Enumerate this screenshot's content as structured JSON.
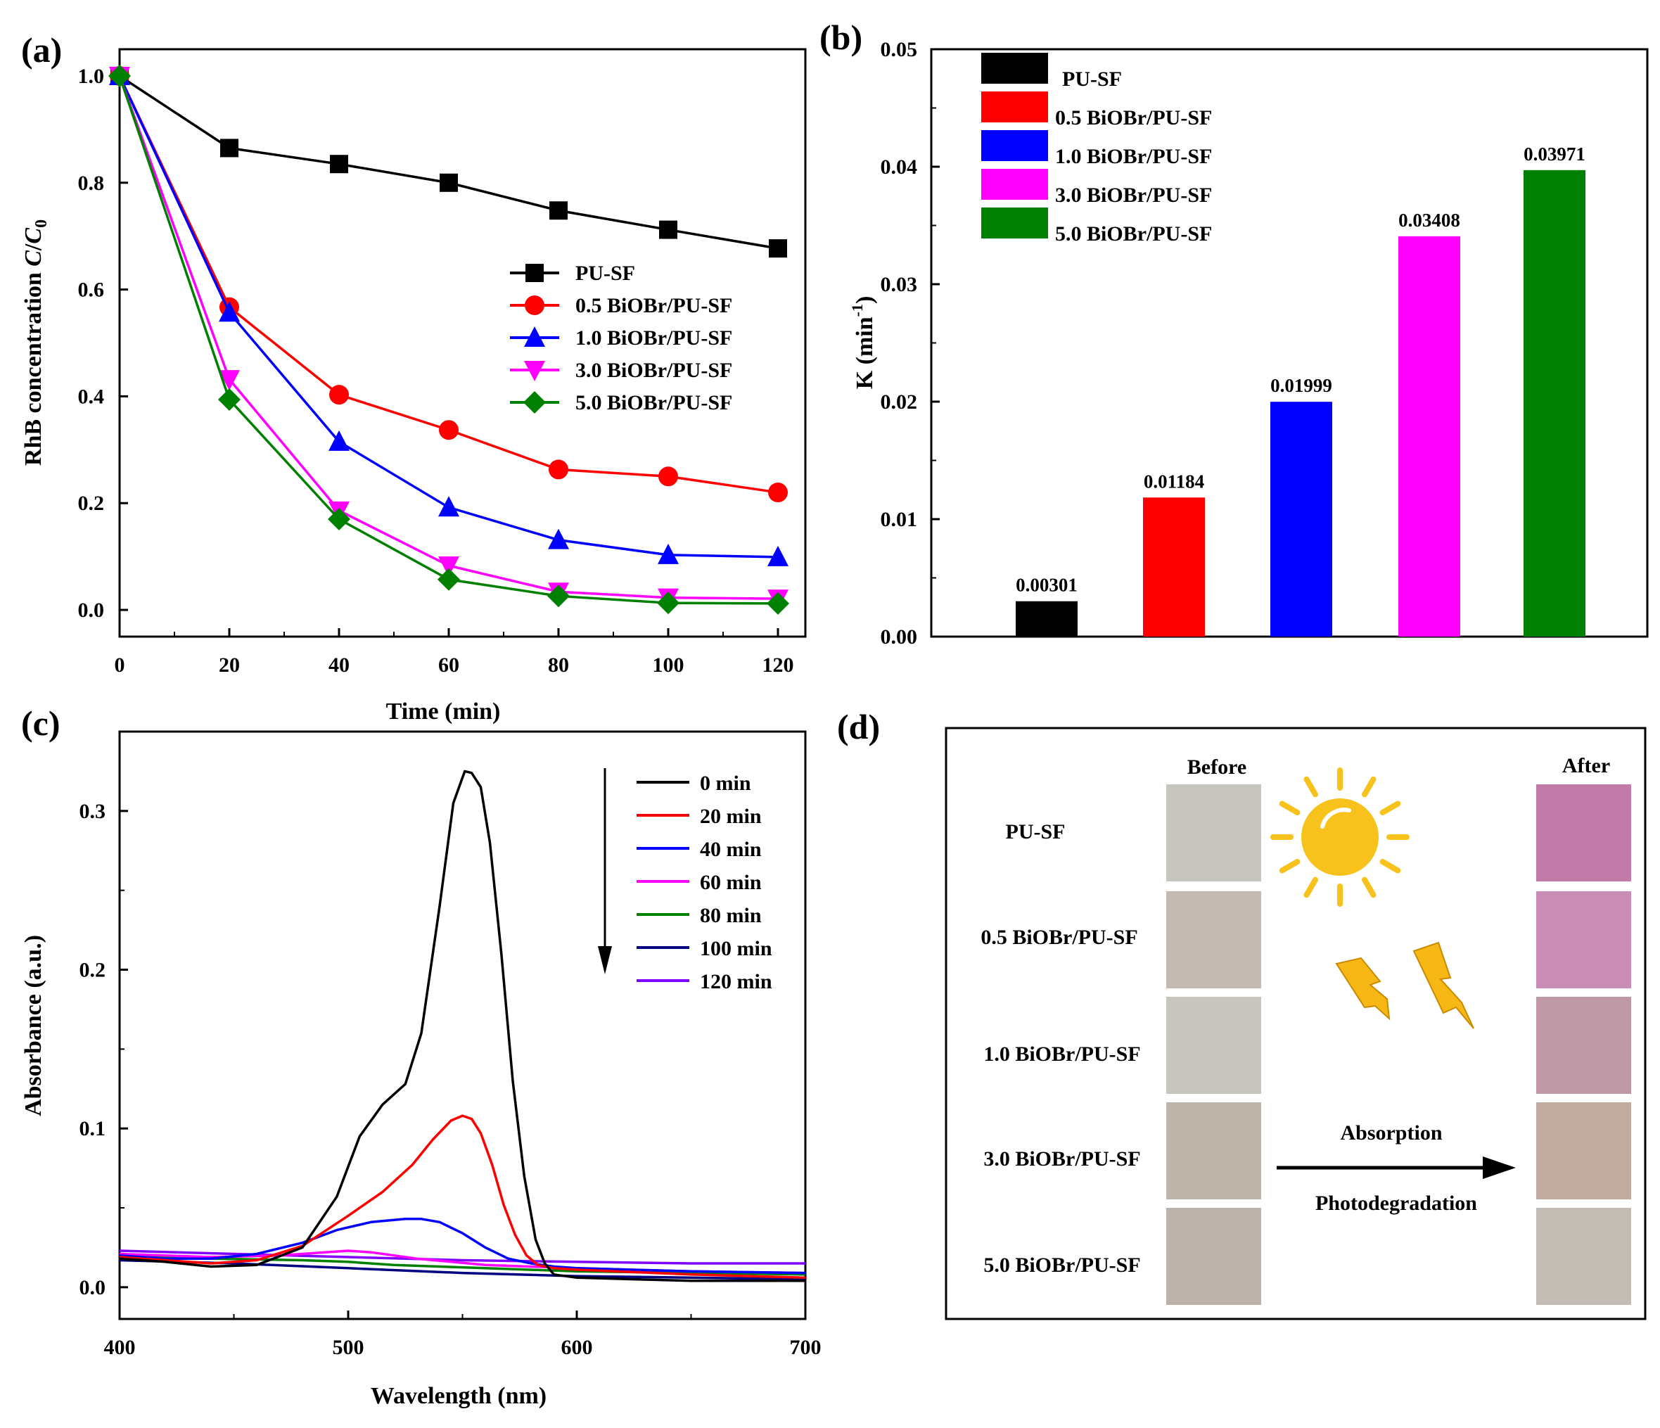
{
  "panel_labels": {
    "a": "(a)",
    "b": "(b)",
    "c": "(c)",
    "d": "(d)"
  },
  "chart_data": [
    {
      "id": "a",
      "type": "line",
      "xlabel": "Time (min)",
      "ylabel": "RhB concentration C/C0",
      "ylabel_parts": [
        "RhB concentration ",
        "C",
        "/",
        "C",
        "0"
      ],
      "xlim": [
        0,
        125
      ],
      "ylim": [
        -0.05,
        1.05
      ],
      "xticks": [
        0,
        20,
        40,
        60,
        80,
        100,
        120
      ],
      "yticks": [
        0.0,
        0.2,
        0.4,
        0.6,
        0.8,
        1.0
      ],
      "ytick_labels": [
        "0.0",
        "0.2",
        "0.4",
        "0.6",
        "0.8",
        "1.0"
      ],
      "x": [
        0,
        20,
        40,
        60,
        80,
        100,
        120
      ],
      "legend_position": "middle-right",
      "series": [
        {
          "name": "PU-SF",
          "color": "#000000",
          "marker": "square",
          "values": [
            1.0,
            0.865,
            0.835,
            0.8,
            0.748,
            0.712,
            0.677
          ]
        },
        {
          "name": "0.5 BiOBr/PU-SF",
          "color": "#ff0000",
          "marker": "circle",
          "values": [
            1.0,
            0.567,
            0.403,
            0.337,
            0.263,
            0.25,
            0.22
          ]
        },
        {
          "name": "1.0 BiOBr/PU-SF",
          "color": "#0000ff",
          "marker": "triangle-up",
          "values": [
            1.0,
            0.557,
            0.315,
            0.192,
            0.131,
            0.103,
            0.099
          ]
        },
        {
          "name": "3.0 BiOBr/PU-SF",
          "color": "#ff00ff",
          "marker": "triangle-down",
          "values": [
            1.0,
            0.432,
            0.186,
            0.083,
            0.034,
            0.023,
            0.021
          ]
        },
        {
          "name": "5.0 BiOBr/PU-SF",
          "color": "#008000",
          "marker": "diamond",
          "values": [
            1.0,
            0.394,
            0.17,
            0.057,
            0.026,
            0.013,
            0.012
          ]
        }
      ]
    },
    {
      "id": "b",
      "type": "bar",
      "ylabel": "K (min-1)",
      "ylabel_parts": [
        "K (min",
        "-1",
        ")"
      ],
      "ylim": [
        0,
        0.05
      ],
      "yticks": [
        0.0,
        0.01,
        0.02,
        0.03,
        0.04,
        0.05
      ],
      "ytick_labels": [
        "0.00",
        "0.01",
        "0.02",
        "0.03",
        "0.04",
        "0.05"
      ],
      "categories": [
        "PU-SF",
        "0.5 BiOBr/PU-SF",
        "1.0 BiOBr/PU-SF",
        "3.0 BiOBr/PU-SF",
        "5.0 BiOBr/PU-SF"
      ],
      "values": [
        0.00301,
        0.01184,
        0.01999,
        0.03408,
        0.03971
      ],
      "value_labels": [
        "0.00301",
        "0.01184",
        "0.01999",
        "0.03408",
        "0.03971"
      ],
      "colors": [
        "#000000",
        "#ff0000",
        "#0000ff",
        "#ff00ff",
        "#008000"
      ],
      "legend_position": "top-left"
    },
    {
      "id": "c",
      "type": "line",
      "xlabel": "Wavelength (nm)",
      "ylabel": "Absorbance (a.u.)",
      "xlim": [
        400,
        700
      ],
      "ylim": [
        -0.02,
        0.35
      ],
      "xticks": [
        400,
        500,
        600,
        700
      ],
      "yticks": [
        0.0,
        0.1,
        0.2,
        0.3
      ],
      "ytick_labels": [
        "0.0",
        "0.1",
        "0.2",
        "0.3"
      ],
      "legend_position": "top-right",
      "arrow_direction": "down",
      "series": [
        {
          "name": "0 min",
          "color": "#000000",
          "x": [
            400,
            420,
            440,
            460,
            480,
            495,
            505,
            515,
            525,
            532,
            540,
            546,
            551,
            554,
            558,
            562,
            567,
            572,
            577,
            582,
            586,
            590,
            600,
            650,
            700
          ],
          "y": [
            0.018,
            0.016,
            0.013,
            0.014,
            0.025,
            0.057,
            0.095,
            0.115,
            0.128,
            0.16,
            0.24,
            0.305,
            0.325,
            0.324,
            0.315,
            0.28,
            0.21,
            0.13,
            0.07,
            0.03,
            0.015,
            0.008,
            0.006,
            0.004,
            0.004
          ]
        },
        {
          "name": "20 min",
          "color": "#ff0000",
          "x": [
            400,
            420,
            440,
            460,
            480,
            500,
            515,
            528,
            537,
            545,
            550,
            554,
            558,
            563,
            568,
            573,
            578,
            583,
            590,
            600,
            650,
            700
          ],
          "y": [
            0.019,
            0.017,
            0.015,
            0.017,
            0.026,
            0.045,
            0.06,
            0.077,
            0.093,
            0.105,
            0.108,
            0.106,
            0.097,
            0.077,
            0.052,
            0.033,
            0.02,
            0.014,
            0.012,
            0.011,
            0.008,
            0.006
          ]
        },
        {
          "name": "40 min",
          "color": "#0000ff",
          "x": [
            400,
            420,
            440,
            460,
            480,
            495,
            510,
            525,
            532,
            540,
            550,
            560,
            570,
            580,
            590,
            600,
            650,
            700
          ],
          "y": [
            0.02,
            0.018,
            0.018,
            0.021,
            0.028,
            0.036,
            0.041,
            0.043,
            0.043,
            0.041,
            0.034,
            0.025,
            0.018,
            0.015,
            0.013,
            0.012,
            0.01,
            0.009
          ]
        },
        {
          "name": "60 min",
          "color": "#ff00ff",
          "x": [
            400,
            440,
            470,
            490,
            500,
            510,
            530,
            560,
            600,
            650,
            700
          ],
          "y": [
            0.021,
            0.019,
            0.02,
            0.022,
            0.023,
            0.022,
            0.018,
            0.014,
            0.012,
            0.01,
            0.009
          ]
        },
        {
          "name": "80 min",
          "color": "#008000",
          "x": [
            400,
            440,
            480,
            500,
            520,
            560,
            600,
            650,
            700
          ],
          "y": [
            0.02,
            0.018,
            0.017,
            0.016,
            0.014,
            0.012,
            0.01,
            0.009,
            0.008
          ]
        },
        {
          "name": "100 min",
          "color": "#000080",
          "x": [
            400,
            450,
            500,
            550,
            600,
            650,
            700
          ],
          "y": [
            0.017,
            0.015,
            0.012,
            0.009,
            0.007,
            0.006,
            0.005
          ]
        },
        {
          "name": "120 min",
          "color": "#8000ff",
          "x": [
            400,
            450,
            500,
            550,
            600,
            650,
            700
          ],
          "y": [
            0.023,
            0.021,
            0.019,
            0.017,
            0.016,
            0.015,
            0.015
          ]
        }
      ]
    }
  ],
  "panel_d": {
    "before_label": "Before",
    "after_label": "After",
    "process_top": "Absorption",
    "process_bottom": "Photodegradation",
    "sample_labels": [
      "PU-SF",
      "0.5 BiOBr/PU-SF",
      "1.0 BiOBr/PU-SF",
      "3.0 BiOBr/PU-SF",
      "5.0 BiOBr/PU-SF"
    ],
    "before_colors": [
      "#c6c5be",
      "#c3bbb1",
      "#c7c5bd",
      "#bdb4aa",
      "#bdb2aa"
    ],
    "after_colors": [
      "#c27aa8",
      "#c98cb5",
      "#bf9aa6",
      "#c1aba0",
      "#c3bcb4"
    ],
    "sun_color": "#f6c21b",
    "bolt_color": "#f7b815"
  }
}
